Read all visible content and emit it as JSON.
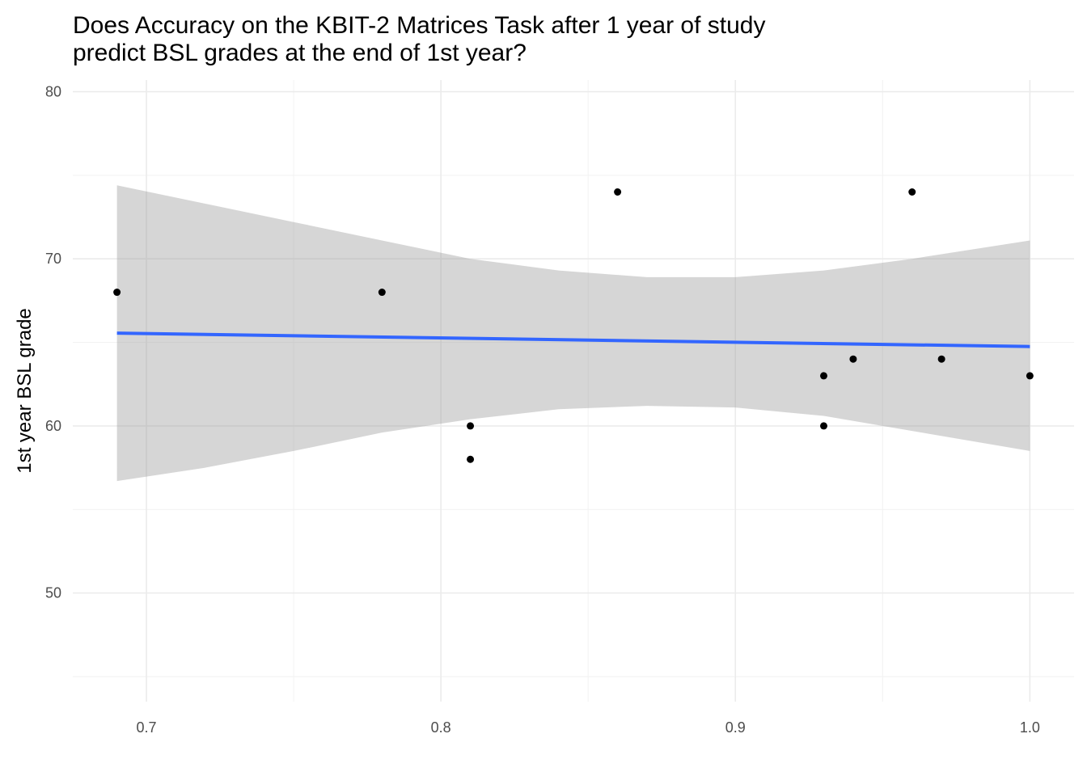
{
  "chart_data": {
    "type": "scatter",
    "title": "Does Accuracy on the KBIT-2 Matrices Task after 1 year of study\npredict BSL grades at the end of 1st year?",
    "xlabel": "",
    "ylabel": "1st year BSL grade",
    "xlim": [
      0.675,
      1.015
    ],
    "ylim": [
      43.5,
      80.7
    ],
    "x_ticks": [
      0.7,
      0.8,
      0.9,
      1.0
    ],
    "x_tick_labels": [
      "0.7",
      "0.8",
      "0.9",
      "1.0"
    ],
    "x_minor_ticks": [
      0.75,
      0.85,
      0.95
    ],
    "y_ticks": [
      50,
      60,
      70,
      80
    ],
    "y_tick_labels": [
      "50",
      "60",
      "70",
      "80"
    ],
    "y_minor_ticks": [
      45,
      55,
      65,
      75
    ],
    "grid": true,
    "legend": "none",
    "points": [
      {
        "x": 0.69,
        "y": 68
      },
      {
        "x": 0.78,
        "y": 68
      },
      {
        "x": 0.81,
        "y": 60
      },
      {
        "x": 0.81,
        "y": 58
      },
      {
        "x": 0.86,
        "y": 74
      },
      {
        "x": 0.93,
        "y": 63
      },
      {
        "x": 0.93,
        "y": 60
      },
      {
        "x": 0.94,
        "y": 64
      },
      {
        "x": 0.96,
        "y": 74
      },
      {
        "x": 0.97,
        "y": 64
      },
      {
        "x": 1.0,
        "y": 63
      }
    ],
    "fit": {
      "method": "lm",
      "x": [
        0.69,
        1.0
      ],
      "y": [
        65.55,
        64.75
      ]
    },
    "confidence_band": [
      {
        "x": 0.69,
        "lower": 56.7,
        "upper": 74.4
      },
      {
        "x": 0.72,
        "lower": 57.5,
        "upper": 73.3
      },
      {
        "x": 0.75,
        "lower": 58.5,
        "upper": 72.2
      },
      {
        "x": 0.78,
        "lower": 59.6,
        "upper": 71.1
      },
      {
        "x": 0.81,
        "lower": 60.4,
        "upper": 70.0
      },
      {
        "x": 0.84,
        "lower": 61.0,
        "upper": 69.3
      },
      {
        "x": 0.87,
        "lower": 61.2,
        "upper": 68.9
      },
      {
        "x": 0.9,
        "lower": 61.1,
        "upper": 68.9
      },
      {
        "x": 0.93,
        "lower": 60.6,
        "upper": 69.3
      },
      {
        "x": 0.96,
        "lower": 59.7,
        "upper": 70.0
      },
      {
        "x": 1.0,
        "lower": 58.5,
        "upper": 71.1
      }
    ],
    "colors": {
      "fit_line": "#3366ff",
      "band": "#999999",
      "points": "#000000",
      "grid_major": "#ebebeb",
      "grid_minor": "#f2f2f2",
      "tick_text": "#4d4d4d"
    }
  }
}
